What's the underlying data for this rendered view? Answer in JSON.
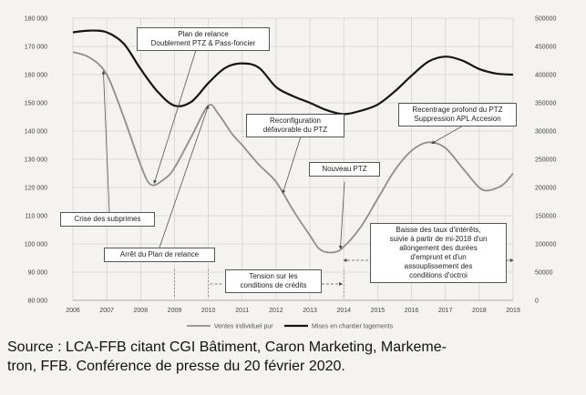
{
  "chart_data": {
    "type": "line",
    "title": "",
    "xlabel": "",
    "ylabel": "",
    "x_categories": [
      "2006",
      "2007",
      "2008",
      "2009",
      "2010",
      "2011",
      "2012",
      "2013",
      "2014",
      "2015",
      "2016",
      "2017",
      "2018",
      "2019"
    ],
    "y_left_ticks": [
      "180 000",
      "170 000",
      "160 000",
      "150 000",
      "140 000",
      "130 000",
      "120 000",
      "110 000",
      "100 000",
      "90 000",
      "80 000"
    ],
    "y_right_ticks": [
      "500000",
      "450000",
      "400000",
      "350000",
      "300000",
      "250000",
      "200000",
      "150000",
      "100000",
      "50000",
      "0"
    ],
    "ylim_left": [
      80000,
      180000
    ],
    "ylim_right": [
      0,
      500000
    ],
    "grid": true,
    "legend_position": "bottom",
    "series": [
      {
        "name": "Ventes individuel pur",
        "axis": "left",
        "color": "#8e8e8e",
        "x": [
          2006,
          2006.5,
          2007,
          2007.5,
          2008,
          2008.3,
          2008.7,
          2009,
          2009.5,
          2010,
          2010.3,
          2010.7,
          2011,
          2011.5,
          2012,
          2012.5,
          2013,
          2013.3,
          2013.7,
          2014,
          2014.5,
          2015,
          2015.5,
          2016,
          2016.5,
          2017,
          2017.5,
          2018,
          2018.3,
          2018.7,
          2019
        ],
        "values": [
          168000,
          166000,
          160000,
          145000,
          128000,
          121000,
          123000,
          127000,
          138000,
          149000,
          146000,
          139000,
          135000,
          128000,
          122000,
          112000,
          103000,
          98000,
          97000,
          99000,
          106000,
          116000,
          126000,
          133000,
          136000,
          134000,
          127000,
          120000,
          119000,
          121000,
          125000
        ]
      },
      {
        "name": "Mises en chantier logements",
        "axis": "right",
        "color": "#151515",
        "x": [
          2006,
          2006.5,
          2007,
          2007.5,
          2008,
          2008.5,
          2009,
          2009.5,
          2010,
          2010.5,
          2011,
          2011.5,
          2012,
          2012.5,
          2013,
          2013.5,
          2014,
          2014.5,
          2015,
          2015.5,
          2016,
          2016.5,
          2017,
          2017.5,
          2018,
          2018.5,
          2019
        ],
        "values": [
          475000,
          478000,
          475000,
          455000,
          410000,
          370000,
          345000,
          352000,
          385000,
          412000,
          420000,
          412000,
          378000,
          362000,
          350000,
          337000,
          330000,
          336000,
          347000,
          370000,
          398000,
          423000,
          432000,
          425000,
          410000,
          402000,
          400000
        ]
      }
    ],
    "legend": [
      "Ventes individuel pur",
      "Mises en chantier logements"
    ],
    "annotations": [
      {
        "id": "crise",
        "lines": [
          "Crise des subprimes"
        ]
      },
      {
        "id": "plan_relance",
        "lines": [
          "Plan de relance",
          "Doublement PTZ & Pass-foncier"
        ]
      },
      {
        "id": "arret_plan",
        "lines": [
          "Arrêt du Plan de relance"
        ]
      },
      {
        "id": "reconfig",
        "lines": [
          "Reconfiguration",
          "défavorable du PTZ"
        ]
      },
      {
        "id": "tension",
        "lines": [
          "Tension sur les",
          "conditions de crédits"
        ]
      },
      {
        "id": "nouveau_ptz",
        "lines": [
          "Nouveau PTZ"
        ]
      },
      {
        "id": "recentrage",
        "lines": [
          "Recentrage profond du PTZ",
          "Suppression APL Accesion"
        ]
      },
      {
        "id": "baisse",
        "lines": [
          "Baisse des taux d'intérêts,",
          "suivie à partir de mi-2018 d'un",
          "allongement des durées",
          "d'emprunt et d'un",
          "assouplissement des",
          "conditions d'octroi"
        ]
      }
    ]
  },
  "caption": {
    "line1": "Source : LCA-FFB citant CGI Bâtiment, Caron Marketing, Markeme-",
    "line2": "tron, FFB. Conférence de presse du 20 février 2020."
  },
  "colors": {
    "background": "#f4f3ef",
    "grid": "#d4d3ce",
    "annotation_border": "#555555"
  }
}
